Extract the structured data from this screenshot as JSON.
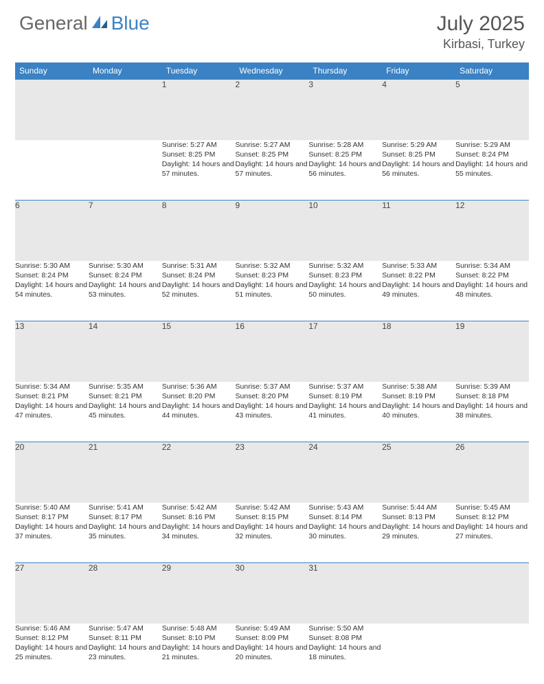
{
  "brand": {
    "part1": "General",
    "part2": "Blue"
  },
  "title": "July 2025",
  "location": "Kirbasi, Turkey",
  "colors": {
    "header_bg": "#3b82c4",
    "daynum_bg": "#e8e8e8",
    "text": "#333333",
    "title_text": "#555555"
  },
  "weekdays": [
    "Sunday",
    "Monday",
    "Tuesday",
    "Wednesday",
    "Thursday",
    "Friday",
    "Saturday"
  ],
  "weeks": [
    [
      null,
      null,
      {
        "n": "1",
        "sr": "5:27 AM",
        "ss": "8:25 PM",
        "dl": "14 hours and 57 minutes."
      },
      {
        "n": "2",
        "sr": "5:27 AM",
        "ss": "8:25 PM",
        "dl": "14 hours and 57 minutes."
      },
      {
        "n": "3",
        "sr": "5:28 AM",
        "ss": "8:25 PM",
        "dl": "14 hours and 56 minutes."
      },
      {
        "n": "4",
        "sr": "5:29 AM",
        "ss": "8:25 PM",
        "dl": "14 hours and 56 minutes."
      },
      {
        "n": "5",
        "sr": "5:29 AM",
        "ss": "8:24 PM",
        "dl": "14 hours and 55 minutes."
      }
    ],
    [
      {
        "n": "6",
        "sr": "5:30 AM",
        "ss": "8:24 PM",
        "dl": "14 hours and 54 minutes."
      },
      {
        "n": "7",
        "sr": "5:30 AM",
        "ss": "8:24 PM",
        "dl": "14 hours and 53 minutes."
      },
      {
        "n": "8",
        "sr": "5:31 AM",
        "ss": "8:24 PM",
        "dl": "14 hours and 52 minutes."
      },
      {
        "n": "9",
        "sr": "5:32 AM",
        "ss": "8:23 PM",
        "dl": "14 hours and 51 minutes."
      },
      {
        "n": "10",
        "sr": "5:32 AM",
        "ss": "8:23 PM",
        "dl": "14 hours and 50 minutes."
      },
      {
        "n": "11",
        "sr": "5:33 AM",
        "ss": "8:22 PM",
        "dl": "14 hours and 49 minutes."
      },
      {
        "n": "12",
        "sr": "5:34 AM",
        "ss": "8:22 PM",
        "dl": "14 hours and 48 minutes."
      }
    ],
    [
      {
        "n": "13",
        "sr": "5:34 AM",
        "ss": "8:21 PM",
        "dl": "14 hours and 47 minutes."
      },
      {
        "n": "14",
        "sr": "5:35 AM",
        "ss": "8:21 PM",
        "dl": "14 hours and 45 minutes."
      },
      {
        "n": "15",
        "sr": "5:36 AM",
        "ss": "8:20 PM",
        "dl": "14 hours and 44 minutes."
      },
      {
        "n": "16",
        "sr": "5:37 AM",
        "ss": "8:20 PM",
        "dl": "14 hours and 43 minutes."
      },
      {
        "n": "17",
        "sr": "5:37 AM",
        "ss": "8:19 PM",
        "dl": "14 hours and 41 minutes."
      },
      {
        "n": "18",
        "sr": "5:38 AM",
        "ss": "8:19 PM",
        "dl": "14 hours and 40 minutes."
      },
      {
        "n": "19",
        "sr": "5:39 AM",
        "ss": "8:18 PM",
        "dl": "14 hours and 38 minutes."
      }
    ],
    [
      {
        "n": "20",
        "sr": "5:40 AM",
        "ss": "8:17 PM",
        "dl": "14 hours and 37 minutes."
      },
      {
        "n": "21",
        "sr": "5:41 AM",
        "ss": "8:17 PM",
        "dl": "14 hours and 35 minutes."
      },
      {
        "n": "22",
        "sr": "5:42 AM",
        "ss": "8:16 PM",
        "dl": "14 hours and 34 minutes."
      },
      {
        "n": "23",
        "sr": "5:42 AM",
        "ss": "8:15 PM",
        "dl": "14 hours and 32 minutes."
      },
      {
        "n": "24",
        "sr": "5:43 AM",
        "ss": "8:14 PM",
        "dl": "14 hours and 30 minutes."
      },
      {
        "n": "25",
        "sr": "5:44 AM",
        "ss": "8:13 PM",
        "dl": "14 hours and 29 minutes."
      },
      {
        "n": "26",
        "sr": "5:45 AM",
        "ss": "8:12 PM",
        "dl": "14 hours and 27 minutes."
      }
    ],
    [
      {
        "n": "27",
        "sr": "5:46 AM",
        "ss": "8:12 PM",
        "dl": "14 hours and 25 minutes."
      },
      {
        "n": "28",
        "sr": "5:47 AM",
        "ss": "8:11 PM",
        "dl": "14 hours and 23 minutes."
      },
      {
        "n": "29",
        "sr": "5:48 AM",
        "ss": "8:10 PM",
        "dl": "14 hours and 21 minutes."
      },
      {
        "n": "30",
        "sr": "5:49 AM",
        "ss": "8:09 PM",
        "dl": "14 hours and 20 minutes."
      },
      {
        "n": "31",
        "sr": "5:50 AM",
        "ss": "8:08 PM",
        "dl": "14 hours and 18 minutes."
      },
      null,
      null
    ]
  ],
  "labels": {
    "sunrise": "Sunrise:",
    "sunset": "Sunset:",
    "daylight": "Daylight:"
  }
}
